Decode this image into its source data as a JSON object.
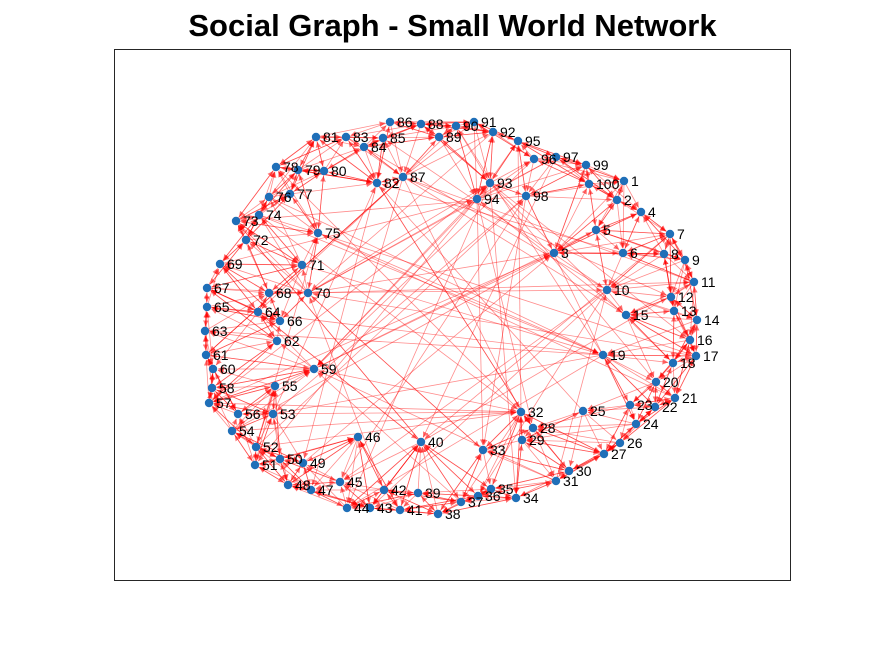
{
  "title": "Social Graph - Small World Network",
  "colors": {
    "node": "#1f6fb8",
    "edge": "#ff0000",
    "frame": "#262626",
    "text": "#000000"
  },
  "chart_data": {
    "type": "network",
    "directed": true,
    "layout": "ring",
    "axes_visible": false,
    "node_count": 100,
    "nodes": [
      "1",
      "2",
      "3",
      "4",
      "5",
      "6",
      "7",
      "8",
      "9",
      "10",
      "11",
      "12",
      "13",
      "14",
      "15",
      "16",
      "17",
      "18",
      "19",
      "20",
      "21",
      "22",
      "23",
      "24",
      "25",
      "26",
      "27",
      "28",
      "29",
      "30",
      "31",
      "32",
      "33",
      "34",
      "35",
      "36",
      "37",
      "38",
      "39",
      "40",
      "41",
      "42",
      "43",
      "44",
      "45",
      "46",
      "47",
      "48",
      "49",
      "50",
      "51",
      "52",
      "53",
      "54",
      "55",
      "56",
      "57",
      "58",
      "59",
      "60",
      "61",
      "62",
      "63",
      "64",
      "65",
      "66",
      "67",
      "68",
      "69",
      "70",
      "71",
      "72",
      "73",
      "74",
      "75",
      "76",
      "77",
      "78",
      "79",
      "80",
      "81",
      "82",
      "83",
      "84",
      "85",
      "86",
      "87",
      "88",
      "89",
      "90",
      "91",
      "92",
      "93",
      "94",
      "95",
      "96",
      "97",
      "98",
      "99",
      "100"
    ],
    "hubs_with_long_range_links": [
      "3",
      "10",
      "19",
      "32",
      "40",
      "59",
      "70",
      "75",
      "82",
      "87",
      "93",
      "94",
      "98"
    ]
  }
}
